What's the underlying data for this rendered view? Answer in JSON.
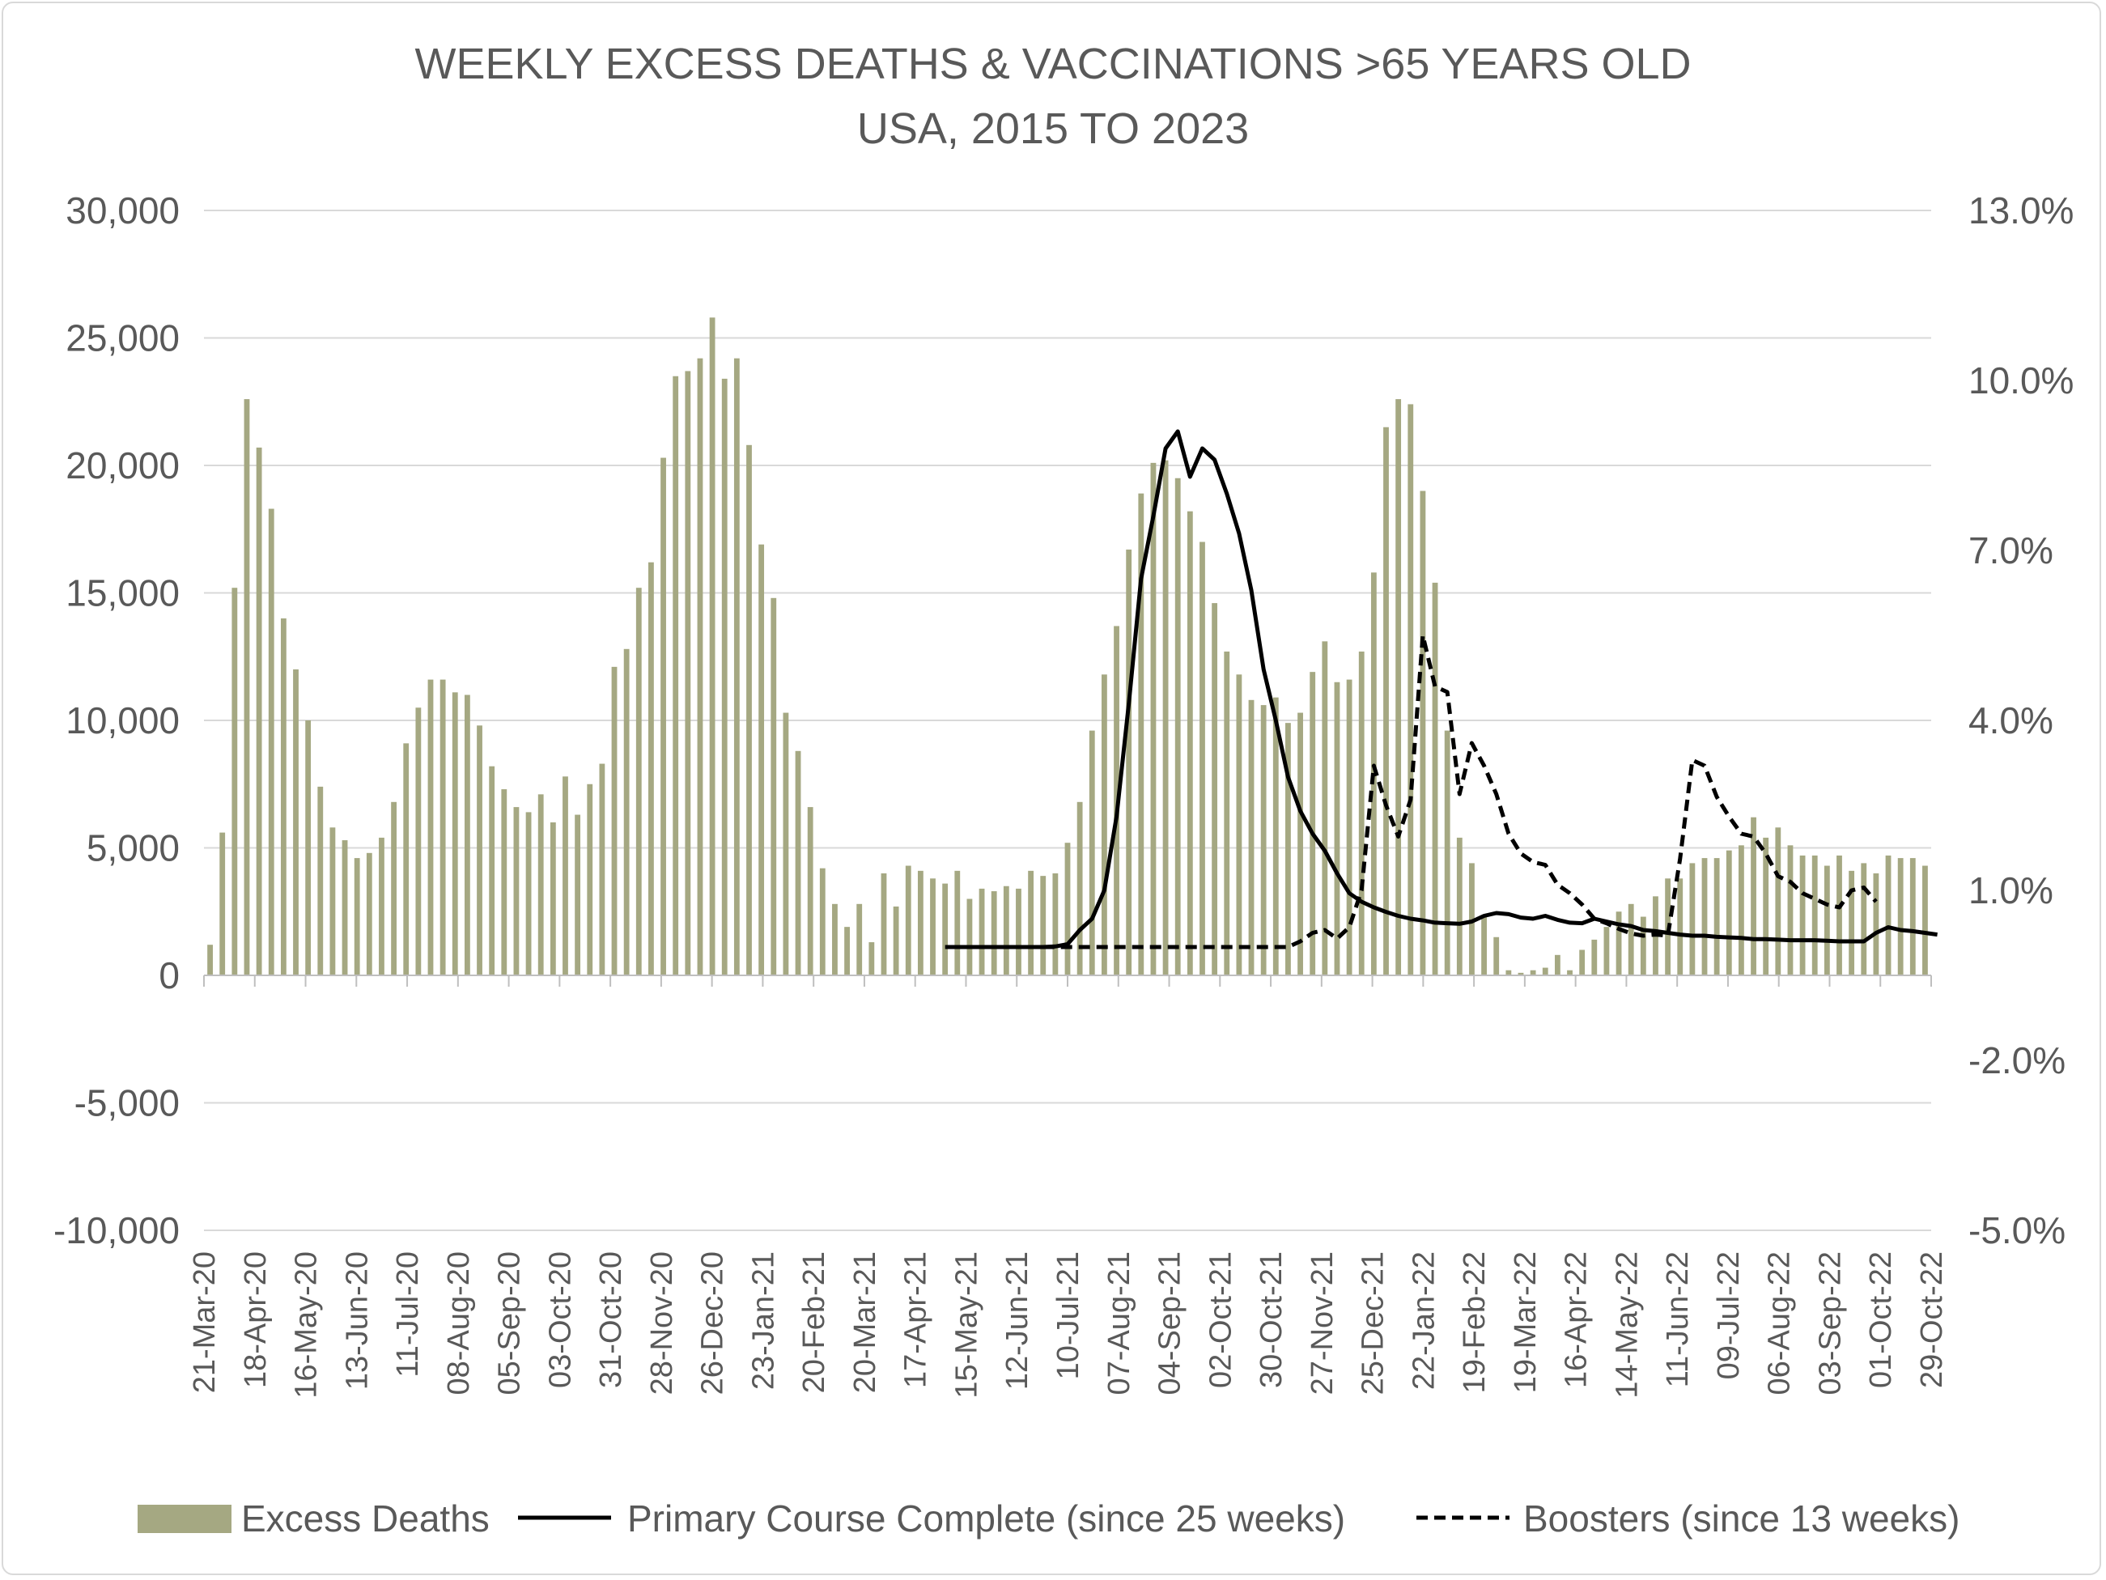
{
  "chart_data": {
    "type": "bar",
    "title_lines": [
      "WEEKLY EXCESS DEATHS & VACCINATIONS >65 YEARS OLD",
      "USA, 2015 TO 2023"
    ],
    "colors": {
      "bars": "#a5a882",
      "lines": "#000000",
      "grid": "#d9d9d9",
      "text": "#595959"
    },
    "y_left": {
      "min": -10000,
      "max": 30000,
      "step": 5000,
      "tick_labels": [
        "-10,000",
        "-5,000",
        "0",
        "5,000",
        "10,000",
        "15,000",
        "20,000",
        "25,000",
        "30,000"
      ]
    },
    "y_right": {
      "min": -5.0,
      "max": 13.0,
      "tick_values": [
        -5.0,
        -2.0,
        1.0,
        4.0,
        7.0,
        10.0,
        13.0
      ],
      "tick_labels": [
        "-5.0%",
        "-2.0%",
        "1.0%",
        "4.0%",
        "7.0%",
        "10.0%",
        "13.0%"
      ]
    },
    "x_tick_labels": [
      "21-Mar-20",
      "18-Apr-20",
      "16-May-20",
      "13-Jun-20",
      "11-Jul-20",
      "08-Aug-20",
      "05-Sep-20",
      "03-Oct-20",
      "31-Oct-20",
      "28-Nov-20",
      "26-Dec-20",
      "23-Jan-21",
      "20-Feb-21",
      "20-Mar-21",
      "17-Apr-21",
      "15-May-21",
      "12-Jun-21",
      "10-Jul-21",
      "07-Aug-21",
      "04-Sep-21",
      "02-Oct-21",
      "30-Oct-21",
      "27-Nov-21",
      "25-Dec-21",
      "22-Jan-22",
      "19-Feb-22",
      "19-Mar-22",
      "16-Apr-22",
      "14-May-22",
      "11-Jun-22",
      "09-Jul-22",
      "06-Aug-22",
      "03-Sep-22",
      "01-Oct-22",
      "29-Oct-22"
    ],
    "series": [
      {
        "name": "Excess Deaths",
        "kind": "bar",
        "axis": "left",
        "values": [
          1200,
          5600,
          15200,
          22600,
          20700,
          18300,
          14000,
          12000,
          10000,
          7400,
          5800,
          5300,
          4600,
          4800,
          5400,
          6800,
          9100,
          10500,
          11600,
          11600,
          11100,
          11000,
          9800,
          8200,
          7300,
          6600,
          6400,
          7100,
          6000,
          7800,
          6300,
          7500,
          8300,
          12100,
          12800,
          15200,
          16200,
          20300,
          23500,
          23700,
          24200,
          25800,
          23400,
          24200,
          20800,
          16900,
          14800,
          10300,
          8800,
          6600,
          4200,
          2800,
          1900,
          2800,
          1300,
          4000,
          2700,
          4300,
          4100,
          3800,
          3600,
          4100,
          3000,
          3400,
          3300,
          3500,
          3400,
          4100,
          3900,
          4000,
          5200,
          6800,
          9600,
          11800,
          13700,
          16700,
          18900,
          20100,
          20200,
          19500,
          18200,
          17000,
          14600,
          12700,
          11800,
          10800,
          10600,
          10900,
          9900,
          10300,
          11900,
          13100,
          11500,
          11600,
          12700,
          15800,
          21500,
          22600,
          22400,
          19000,
          15400,
          9600,
          5400,
          4400,
          2300,
          1500,
          200,
          100,
          200,
          300,
          800,
          200,
          1000,
          1400,
          1900,
          2500,
          2800,
          2300,
          3100,
          3800,
          3800,
          4400,
          4600,
          4600,
          4900,
          5100,
          6200,
          5400,
          5800,
          5100,
          4700,
          4700,
          4300,
          4700,
          4100,
          4400,
          4000,
          4700,
          4600,
          4600,
          4300
        ]
      },
      {
        "name": "Primary Course Complete (since 25 weeks)",
        "kind": "line",
        "dash": false,
        "axis": "right",
        "start_index": 60,
        "values": [
          0,
          0,
          0,
          0,
          0,
          0,
          0,
          0,
          0,
          0.01,
          0.05,
          0.3,
          0.5,
          1.0,
          2.3,
          4.3,
          6.5,
          7.6,
          8.8,
          9.1,
          8.3,
          8.8,
          8.6,
          8.0,
          7.3,
          6.3,
          4.9,
          4.0,
          3.0,
          2.4,
          2.0,
          1.7,
          1.3,
          0.95,
          0.8,
          0.7,
          0.62,
          0.55,
          0.5,
          0.47,
          0.43,
          0.42,
          0.41,
          0.45,
          0.55,
          0.6,
          0.58,
          0.52,
          0.5,
          0.55,
          0.48,
          0.43,
          0.42,
          0.5,
          0.45,
          0.4,
          0.37,
          0.3,
          0.28,
          0.25,
          0.22,
          0.2,
          0.2,
          0.18,
          0.17,
          0.16,
          0.14,
          0.14,
          0.13,
          0.12,
          0.12,
          0.12,
          0.11,
          0.1,
          0.1,
          0.1,
          0.25,
          0.35,
          0.3,
          0.28,
          0.25,
          0.22
        ]
      },
      {
        "name": "Boosters (since 13 weeks)",
        "kind": "line",
        "dash": true,
        "axis": "right",
        "start_index": 68,
        "values": [
          0,
          0,
          0,
          0,
          0,
          0,
          0,
          0,
          0,
          0,
          0,
          0,
          0,
          0,
          0,
          0,
          0,
          0,
          0,
          0,
          0,
          0.1,
          0.25,
          0.3,
          0.15,
          0.35,
          1.0,
          3.2,
          2.5,
          1.95,
          2.6,
          5.5,
          4.6,
          4.5,
          2.7,
          3.6,
          3.2,
          2.7,
          2.0,
          1.65,
          1.5,
          1.45,
          1.1,
          0.95,
          0.75,
          0.5,
          0.42,
          0.32,
          0.24,
          0.2,
          0.22,
          0.2,
          1.55,
          3.3,
          3.2,
          2.65,
          2.3,
          2.0,
          1.95,
          1.65,
          1.25,
          1.15,
          0.95,
          0.85,
          0.75,
          0.7,
          1.0,
          1.05,
          0.8
        ]
      }
    ],
    "legend": {
      "position": "bottom",
      "labels": [
        "Excess Deaths",
        "Primary Course Complete (since 25 weeks)",
        "Boosters (since 13 weeks)"
      ]
    },
    "grid": true
  }
}
